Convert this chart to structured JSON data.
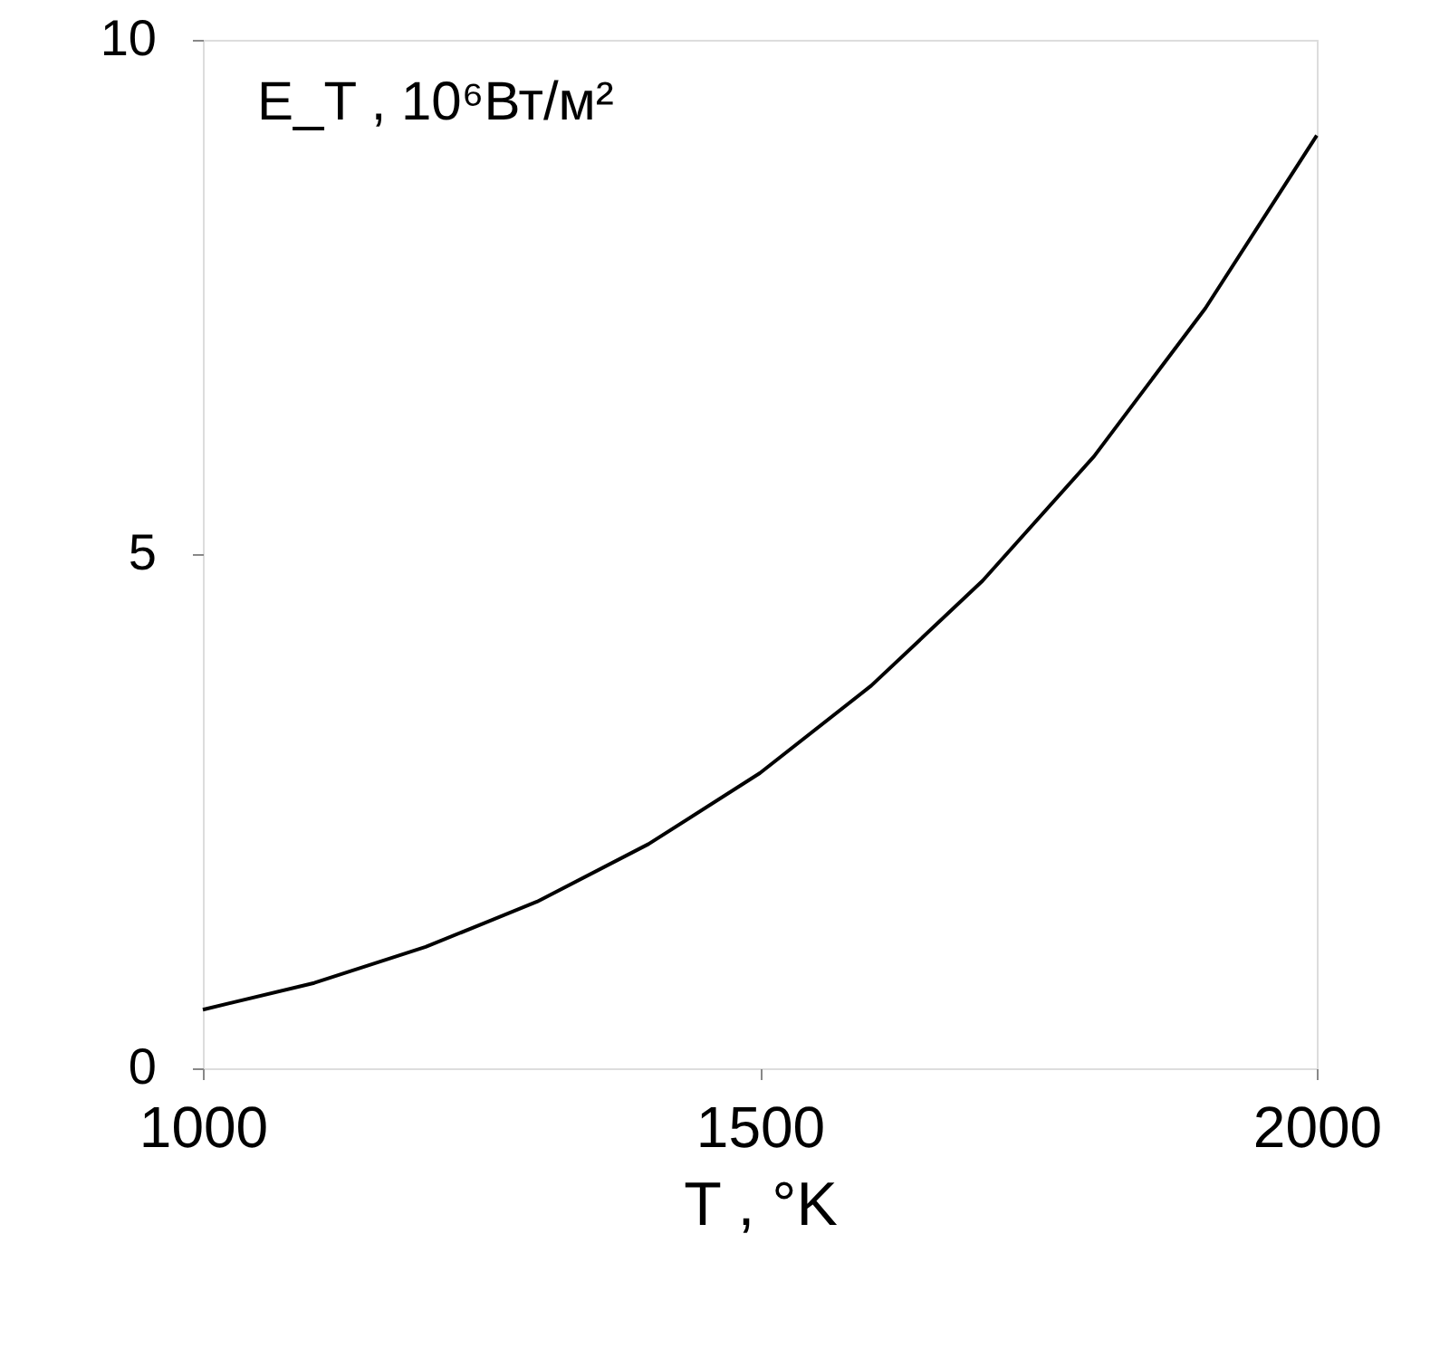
{
  "chart_data": {
    "type": "line",
    "ylabel": "E_T , 10⁶Вт/м²",
    "xlabel": "T ,  °K",
    "x": [
      1000,
      1100,
      1200,
      1300,
      1400,
      1500,
      1600,
      1700,
      1800,
      1900,
      2000
    ],
    "series": [
      {
        "color": "#000000",
        "values": [
          0.57,
          0.83,
          1.18,
          1.62,
          2.18,
          2.87,
          3.72,
          4.74,
          5.95,
          7.39,
          9.07
        ]
      }
    ],
    "xlim": [
      1000,
      2000
    ],
    "xticks": [
      1000,
      1500,
      2000
    ],
    "ylim": [
      0,
      10
    ],
    "yticks": [
      0,
      5,
      10
    ],
    "grid": false,
    "legend": false,
    "marker": "none",
    "line_style": "solid"
  }
}
